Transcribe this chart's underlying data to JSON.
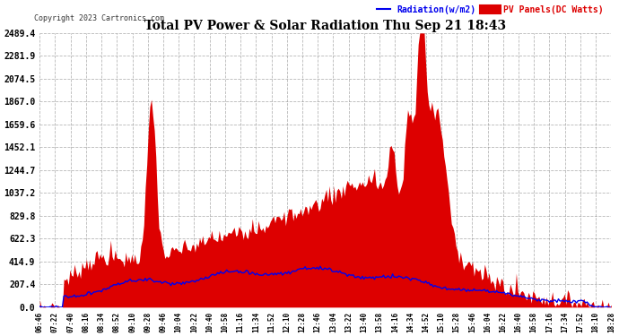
{
  "title": "Total PV Power & Solar Radiation Thu Sep 21 18:43",
  "copyright": "Copyright 2023 Cartronics.com",
  "legend_radiation": "Radiation(w/m2)",
  "legend_pv": "PV Panels(DC Watts)",
  "y_max": 2489.4,
  "y_ticks": [
    0.0,
    207.4,
    414.9,
    622.3,
    829.8,
    1037.2,
    1244.7,
    1452.1,
    1659.6,
    1867.0,
    2074.5,
    2281.9,
    2489.4
  ],
  "background_color": "#ffffff",
  "plot_bg_color": "#ffffff",
  "grid_color": "#888888",
  "fill_color": "#dd0000",
  "line_color_radiation": "#0000ee",
  "line_color_pv": "#cc0000",
  "x_labels": [
    "06:46",
    "07:22",
    "07:40",
    "08:16",
    "08:34",
    "08:52",
    "09:10",
    "09:28",
    "09:46",
    "10:04",
    "10:22",
    "10:40",
    "10:58",
    "11:16",
    "11:34",
    "11:52",
    "12:10",
    "12:28",
    "12:46",
    "13:04",
    "13:22",
    "13:40",
    "13:58",
    "14:16",
    "14:34",
    "14:52",
    "15:10",
    "15:28",
    "15:46",
    "16:04",
    "16:22",
    "16:40",
    "16:58",
    "17:16",
    "17:34",
    "17:52",
    "18:10",
    "18:28"
  ],
  "num_points": 380
}
